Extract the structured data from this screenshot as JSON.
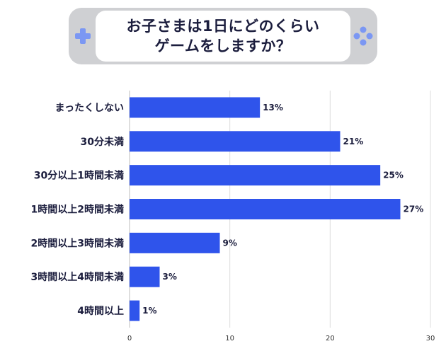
{
  "header": {
    "title_line1": "お子さまは1日にどのくらい",
    "title_line2": "ゲームをしますか？",
    "left_icon": "dpad-icon",
    "right_icon": "gamepad-buttons-icon",
    "frame_color": "#cfd0d3",
    "icon_color": "#7b97f3"
  },
  "chart_data": {
    "type": "bar",
    "orientation": "horizontal",
    "categories": [
      "まったくしない",
      "30分未満",
      "30分以上1時間未満",
      "1時間以上2時間未満",
      "2時間以上3時間未満",
      "3時間以上4時間未満",
      "4時間以上"
    ],
    "values": [
      13,
      21,
      25,
      27,
      9,
      3,
      1
    ],
    "value_labels": [
      "13%",
      "21%",
      "25%",
      "27%",
      "9%",
      "3%",
      "1%"
    ],
    "xlim": [
      0,
      30
    ],
    "xticks": [
      0,
      10,
      20,
      30
    ],
    "grid": true,
    "legend": "none",
    "bar_color": "#2f54eb",
    "title": "",
    "xlabel": "",
    "ylabel": ""
  }
}
